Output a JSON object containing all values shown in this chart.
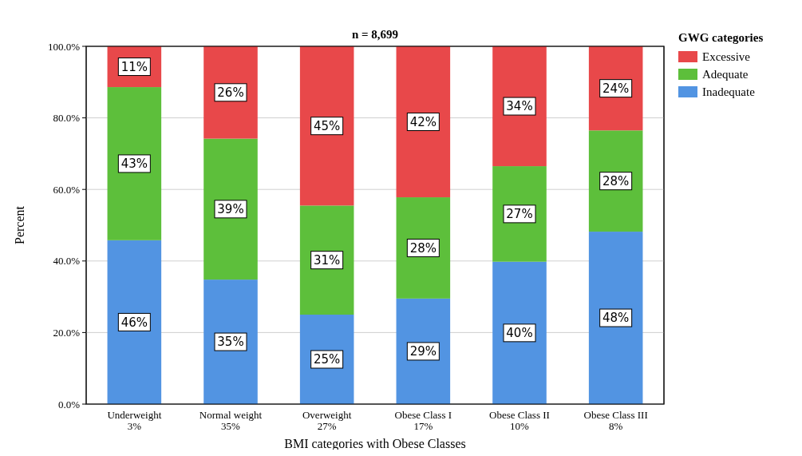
{
  "chart_data": {
    "type": "bar",
    "title": "n = 8,699",
    "xlabel": "BMI categories with Obese Classes",
    "ylabel": "Percent",
    "legend_title": "GWG categories",
    "categories": [
      "Underweight\n3%",
      "Normal weight\n35%",
      "Overweight\n27%",
      "Obese Class I\n17%",
      "Obese Class II\n10%",
      "Obese Class III\n8%"
    ],
    "stacked": true,
    "ylim": [
      0,
      100
    ],
    "yticks": [
      {
        "value": 0,
        "label": "0.0%"
      },
      {
        "value": 20,
        "label": "20.0%"
      },
      {
        "value": 40,
        "label": "40.0%"
      },
      {
        "value": 60,
        "label": "60.0%"
      },
      {
        "value": 80,
        "label": "80.0%"
      },
      {
        "value": 100,
        "label": "100.0%"
      }
    ],
    "grid": "y",
    "legend": "top right",
    "series": [
      {
        "name": "Inadequate",
        "color": "#5294e2",
        "values": [
          45.8,
          34.8,
          25,
          29.5,
          39.8,
          48.2
        ],
        "value_labels": [
          "46%",
          "35%",
          "25%",
          "29%",
          "40%",
          "48%"
        ]
      },
      {
        "name": "Adequate",
        "color": "#5dbf3b",
        "values": [
          42.8,
          39.4,
          30.5,
          28.3,
          26.7,
          28.3
        ],
        "value_labels": [
          "43%",
          "39%",
          "31%",
          "28%",
          "27%",
          "28%"
        ]
      },
      {
        "name": "Excessive",
        "color": "#e8484a",
        "values": [
          11.4,
          25.8,
          44.5,
          42.2,
          33.5,
          23.5
        ],
        "value_labels": [
          "11%",
          "26%",
          "45%",
          "42%",
          "34%",
          "24%"
        ]
      }
    ]
  }
}
